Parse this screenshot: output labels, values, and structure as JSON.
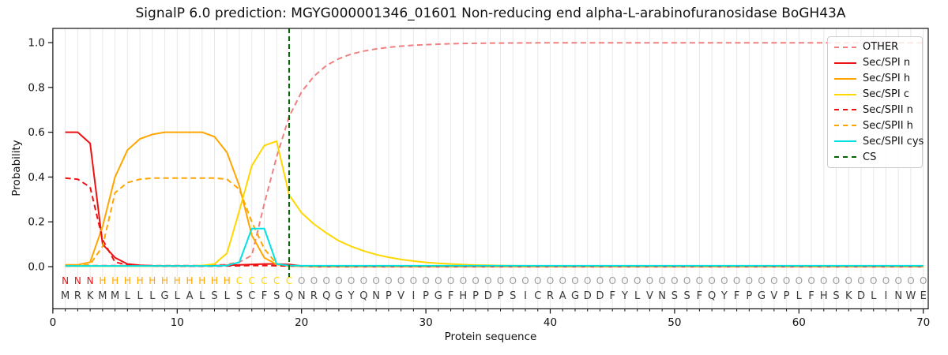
{
  "chart_data": {
    "type": "line",
    "title": "SignalP 6.0 prediction: MGYG000001346_01601 Non-reducing end alpha-L-arabinofuranosidase BoGH43A",
    "xlabel": "Protein sequence",
    "ylabel": "Probability",
    "xlim": [
      0,
      70.4
    ],
    "ylim": [
      -0.19,
      1.06
    ],
    "xticks": [
      0,
      10,
      20,
      30,
      40,
      50,
      60,
      70
    ],
    "yticks": [
      0.0,
      0.2,
      0.4,
      0.6,
      0.8,
      1.0
    ],
    "grid": "vertical gridline at every residue position, no horizontal grid",
    "legend_position": "upper right",
    "x": [
      1,
      2,
      3,
      4,
      5,
      6,
      7,
      8,
      9,
      10,
      11,
      12,
      13,
      14,
      15,
      16,
      17,
      18,
      19,
      20,
      21,
      22,
      23,
      24,
      25,
      26,
      27,
      28,
      29,
      30,
      31,
      32,
      33,
      34,
      35,
      36,
      37,
      38,
      39,
      40,
      41,
      42,
      43,
      44,
      45,
      46,
      47,
      48,
      49,
      50,
      51,
      52,
      53,
      54,
      55,
      56,
      57,
      58,
      59,
      60,
      61,
      62,
      63,
      64,
      65,
      66,
      67,
      68,
      69,
      70
    ],
    "sequence": [
      "M",
      "R",
      "K",
      "M",
      "M",
      "L",
      "L",
      "L",
      "G",
      "L",
      "A",
      "L",
      "S",
      "L",
      "S",
      "C",
      "F",
      "S",
      "Q",
      "N",
      "R",
      "Q",
      "G",
      "Y",
      "Q",
      "N",
      "P",
      "V",
      "I",
      "P",
      "G",
      "F",
      "H",
      "P",
      "D",
      "P",
      "S",
      "I",
      "C",
      "R",
      "A",
      "G",
      "D",
      "D",
      "F",
      "Y",
      "L",
      "V",
      "N",
      "S",
      "S",
      "F",
      "Q",
      "Y",
      "F",
      "P",
      "G",
      "V",
      "P",
      "L",
      "F",
      "H",
      "S",
      "K",
      "D",
      "L",
      "I",
      "N",
      "W",
      "E"
    ],
    "region_labels": [
      "N",
      "N",
      "N",
      "H",
      "H",
      "H",
      "H",
      "H",
      "H",
      "H",
      "H",
      "H",
      "H",
      "H",
      "C",
      "C",
      "C",
      "C",
      "C",
      "O",
      "O",
      "O",
      "O",
      "O",
      "O",
      "O",
      "O",
      "O",
      "O",
      "O",
      "O",
      "O",
      "O",
      "O",
      "O",
      "O",
      "O",
      "O",
      "O",
      "O",
      "O",
      "O",
      "O",
      "O",
      "O",
      "O",
      "O",
      "O",
      "O",
      "O",
      "O",
      "O",
      "O",
      "O",
      "O",
      "O",
      "O",
      "O",
      "O",
      "O",
      "O",
      "O",
      "O",
      "O",
      "O",
      "O",
      "O",
      "O",
      "O",
      "O"
    ],
    "region_colors": {
      "N": "#ee1111",
      "H": "#ffa500",
      "C": "#ffd700",
      "O": "#9b9b9b"
    },
    "sequence_color": "#3a3a3a",
    "series": [
      {
        "name": "OTHER",
        "color": "#f08080",
        "dash": "dashed",
        "values": [
          0.005,
          0.005,
          0.005,
          0.005,
          0.005,
          0.005,
          0.005,
          0.005,
          0.005,
          0.005,
          0.005,
          0.005,
          0.006,
          0.01,
          0.02,
          0.05,
          0.28,
          0.49,
          0.67,
          0.78,
          0.85,
          0.898,
          0.928,
          0.949,
          0.962,
          0.972,
          0.979,
          0.984,
          0.988,
          0.991,
          0.993,
          0.995,
          0.996,
          0.997,
          0.9975,
          0.998,
          0.9983,
          0.9986,
          0.9988,
          0.999,
          0.999,
          0.999,
          0.999,
          0.999,
          0.999,
          0.999,
          0.999,
          0.999,
          0.999,
          0.999,
          0.999,
          0.999,
          0.999,
          0.999,
          0.999,
          0.999,
          0.999,
          0.999,
          0.999,
          0.999,
          0.999,
          0.999,
          0.999,
          0.999,
          0.999,
          0.999,
          0.999,
          0.999,
          0.999,
          0.999
        ]
      },
      {
        "name": "Sec/SPI n",
        "color": "#ee1111",
        "dash": "solid",
        "values": [
          0.6,
          0.6,
          0.55,
          0.1,
          0.04,
          0.012,
          0.006,
          0.004,
          0.003,
          0.003,
          0.003,
          0.003,
          0.004,
          0.006,
          0.008,
          0.01,
          0.012,
          0.012,
          0.01,
          0.003,
          0.001,
          0.001,
          0.001,
          0.001,
          0.001,
          0.001,
          0.001,
          0.001,
          0.001,
          0.001,
          0.001,
          0.001,
          0.001,
          0.001,
          0.001,
          0.001,
          0.001,
          0.001,
          0.001,
          0.001,
          0.001,
          0.001,
          0.001,
          0.001,
          0.001,
          0.001,
          0.001,
          0.001,
          0.001,
          0.001,
          0.001,
          0.001,
          0.001,
          0.001,
          0.001,
          0.001,
          0.001,
          0.001,
          0.001,
          0.001,
          0.001,
          0.001,
          0.001,
          0.001,
          0.001,
          0.001,
          0.001,
          0.001,
          0.001,
          0.001
        ]
      },
      {
        "name": "Sec/SPI h",
        "color": "#ffa500",
        "dash": "solid",
        "values": [
          0.008,
          0.008,
          0.02,
          0.18,
          0.4,
          0.52,
          0.57,
          0.59,
          0.6,
          0.6,
          0.6,
          0.6,
          0.58,
          0.51,
          0.36,
          0.14,
          0.04,
          0.01,
          0.003,
          0.002,
          0.001,
          0.001,
          0.001,
          0.001,
          0.001,
          0.001,
          0.001,
          0.001,
          0.001,
          0.001,
          0.001,
          0.001,
          0.001,
          0.001,
          0.001,
          0.001,
          0.001,
          0.001,
          0.001,
          0.001,
          0.001,
          0.001,
          0.001,
          0.001,
          0.001,
          0.001,
          0.001,
          0.001,
          0.001,
          0.001,
          0.001,
          0.001,
          0.001,
          0.001,
          0.001,
          0.001,
          0.001,
          0.001,
          0.001,
          0.001,
          0.001,
          0.001,
          0.001,
          0.001,
          0.001,
          0.001,
          0.001,
          0.001,
          0.001,
          0.001
        ]
      },
      {
        "name": "Sec/SPI c",
        "color": "#ffd700",
        "dash": "solid",
        "values": [
          0.002,
          0.002,
          0.002,
          0.002,
          0.002,
          0.002,
          0.002,
          0.002,
          0.002,
          0.002,
          0.003,
          0.005,
          0.012,
          0.06,
          0.25,
          0.45,
          0.54,
          0.56,
          0.32,
          0.24,
          0.19,
          0.15,
          0.115,
          0.09,
          0.07,
          0.054,
          0.042,
          0.032,
          0.025,
          0.019,
          0.015,
          0.012,
          0.009,
          0.007,
          0.006,
          0.005,
          0.004,
          0.004,
          0.003,
          0.003,
          0.002,
          0.002,
          0.002,
          0.002,
          0.002,
          0.002,
          0.002,
          0.002,
          0.002,
          0.002,
          0.002,
          0.002,
          0.002,
          0.002,
          0.002,
          0.002,
          0.002,
          0.002,
          0.002,
          0.002,
          0.002,
          0.002,
          0.002,
          0.002,
          0.002,
          0.002,
          0.002,
          0.002,
          0.002,
          0.002
        ]
      },
      {
        "name": "Sec/SPII n",
        "color": "#ee1111",
        "dash": "dashed",
        "values": [
          0.395,
          0.39,
          0.355,
          0.12,
          0.02,
          0.008,
          0.004,
          0.003,
          0.002,
          0.002,
          0.002,
          0.002,
          0.002,
          0.003,
          0.004,
          0.005,
          0.005,
          0.004,
          0.003,
          0.002,
          0.001,
          0.001,
          0.001,
          0.001,
          0.001,
          0.001,
          0.001,
          0.001,
          0.001,
          0.001,
          0.001,
          0.001,
          0.001,
          0.001,
          0.001,
          0.001,
          0.001,
          0.001,
          0.001,
          0.001,
          0.001,
          0.001,
          0.001,
          0.001,
          0.001,
          0.001,
          0.001,
          0.001,
          0.001,
          0.001,
          0.001,
          0.001,
          0.001,
          0.001,
          0.001,
          0.001,
          0.001,
          0.001,
          0.001,
          0.001,
          0.001,
          0.001,
          0.001,
          0.001,
          0.001,
          0.001,
          0.001,
          0.001,
          0.001,
          0.001
        ]
      },
      {
        "name": "Sec/SPII h",
        "color": "#ffa500",
        "dash": "dashed",
        "values": [
          0.002,
          0.003,
          0.01,
          0.09,
          0.33,
          0.375,
          0.39,
          0.395,
          0.395,
          0.395,
          0.395,
          0.395,
          0.395,
          0.39,
          0.345,
          0.2,
          0.08,
          0.012,
          0.003,
          0.002,
          0.001,
          0.001,
          0.001,
          0.001,
          0.001,
          0.001,
          0.001,
          0.001,
          0.001,
          0.001,
          0.001,
          0.001,
          0.001,
          0.001,
          0.001,
          0.001,
          0.001,
          0.001,
          0.001,
          0.001,
          0.001,
          0.001,
          0.001,
          0.001,
          0.001,
          0.001,
          0.001,
          0.001,
          0.001,
          0.001,
          0.001,
          0.001,
          0.001,
          0.001,
          0.001,
          0.001,
          0.001,
          0.001,
          0.001,
          0.001,
          0.001,
          0.001,
          0.001,
          0.001,
          0.001,
          0.001,
          0.001,
          0.001,
          0.001,
          0.001
        ]
      },
      {
        "name": "Sec/SPII cys",
        "color": "#00e1e1",
        "dash": "solid",
        "values": [
          0.003,
          0.003,
          0.003,
          0.003,
          0.003,
          0.003,
          0.003,
          0.003,
          0.003,
          0.003,
          0.003,
          0.003,
          0.003,
          0.005,
          0.02,
          0.17,
          0.17,
          0.012,
          0.005,
          0.004,
          0.004,
          0.004,
          0.004,
          0.004,
          0.004,
          0.004,
          0.004,
          0.004,
          0.004,
          0.004,
          0.004,
          0.004,
          0.004,
          0.004,
          0.004,
          0.004,
          0.004,
          0.004,
          0.004,
          0.004,
          0.004,
          0.004,
          0.004,
          0.004,
          0.004,
          0.004,
          0.004,
          0.004,
          0.004,
          0.004,
          0.004,
          0.004,
          0.004,
          0.004,
          0.004,
          0.004,
          0.004,
          0.004,
          0.004,
          0.004,
          0.004,
          0.004,
          0.004,
          0.004,
          0.004,
          0.004,
          0.004,
          0.004,
          0.004,
          0.004
        ]
      }
    ],
    "cs_marker": {
      "label": "CS",
      "position": 19,
      "color": "#006400",
      "dash": "dashed"
    }
  }
}
